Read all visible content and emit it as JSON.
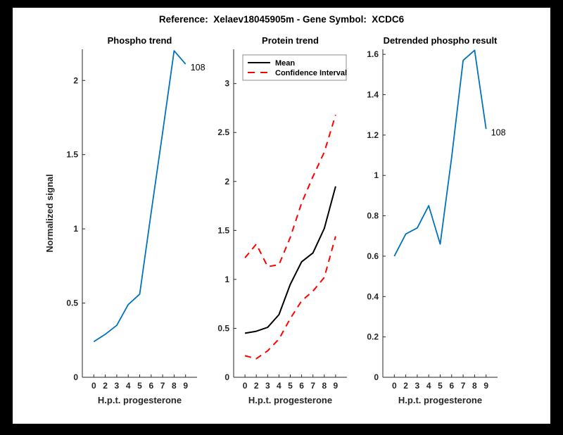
{
  "figure": {
    "title": "Reference:  Xelaev18045905m - Gene Symbol:  XCDC6",
    "border_color": "#000000",
    "background_color": "#ffffff",
    "axis_color": "#262626"
  },
  "chart_data": [
    {
      "type": "line",
      "title": "Phospho trend",
      "xlabel": "H.p.t. progesterone",
      "ylabel": "Normalized signal",
      "x_ticklabels": [
        "0",
        "2",
        "3",
        "4",
        "5",
        "6",
        "7",
        "8",
        "9"
      ],
      "y_ticks": [
        0,
        0.5,
        1,
        1.5,
        2
      ],
      "y_ticklabels": [
        "0",
        "0.5",
        "1",
        "1.5",
        "2"
      ],
      "ylim": [
        0,
        2.21
      ],
      "grid": false,
      "series": [
        {
          "name": "phospho-signal",
          "color": "#0072BD",
          "dash": "solid",
          "width": 1.8,
          "values": [
            0.24,
            0.29,
            0.35,
            0.49,
            0.56,
            1.11,
            1.65,
            2.2,
            2.11
          ]
        }
      ],
      "annotation": {
        "text": "108",
        "index": 8
      }
    },
    {
      "type": "line",
      "title": "Protein trend",
      "xlabel": "H.p.t. progesterone",
      "ylabel": "",
      "x_ticklabels": [
        "0",
        "2",
        "3",
        "4",
        "5",
        "6",
        "7",
        "8",
        "9"
      ],
      "y_ticks": [
        0,
        0.5,
        1,
        1.5,
        2,
        2.5,
        3
      ],
      "y_ticklabels": [
        "0",
        "0.5",
        "1",
        "1.5",
        "2",
        "2.5",
        "3"
      ],
      "ylim": [
        0,
        3.35
      ],
      "grid": false,
      "series": [
        {
          "name": "protein-mean",
          "color": "#000000",
          "dash": "solid",
          "width": 2,
          "values": [
            0.45,
            0.47,
            0.51,
            0.64,
            0.95,
            1.18,
            1.27,
            1.52,
            1.95
          ]
        },
        {
          "name": "confidence-upper",
          "color": "#FF0000",
          "dash": "dashed",
          "width": 2,
          "values": [
            1.22,
            1.36,
            1.13,
            1.15,
            1.43,
            1.78,
            2.05,
            2.3,
            2.68
          ]
        },
        {
          "name": "confidence-lower",
          "color": "#FF0000",
          "dash": "dashed",
          "width": 2,
          "values": [
            0.22,
            0.19,
            0.27,
            0.39,
            0.6,
            0.78,
            0.88,
            1.02,
            1.44
          ]
        }
      ],
      "legend": {
        "position": "northwest",
        "border_color": "#8c8c8c",
        "entries": [
          {
            "label": "Mean",
            "color": "#000000",
            "dash": "solid"
          },
          {
            "label": "Confidence Interval",
            "color": "#FF0000",
            "dash": "dashed"
          }
        ]
      }
    },
    {
      "type": "line",
      "title": "Detrended phospho result",
      "xlabel": "H.p.t. progesterone",
      "ylabel": "",
      "x_ticklabels": [
        "0",
        "2",
        "3",
        "4",
        "5",
        "6",
        "7",
        "8",
        "9"
      ],
      "y_ticks": [
        0,
        0.2,
        0.4,
        0.6,
        0.8,
        1,
        1.2,
        1.4,
        1.6
      ],
      "y_ticklabels": [
        "0",
        "0.2",
        "0.4",
        "0.6",
        "0.8",
        "1",
        "1.2",
        "1.4",
        "1.6"
      ],
      "ylim": [
        0,
        1.625
      ],
      "grid": false,
      "series": [
        {
          "name": "detrended-signal",
          "color": "#0072BD",
          "dash": "solid",
          "width": 1.8,
          "values": [
            0.6,
            0.71,
            0.74,
            0.85,
            0.66,
            1.09,
            1.57,
            1.62,
            1.23
          ]
        }
      ],
      "annotation": {
        "text": "108",
        "index": 8
      }
    }
  ]
}
